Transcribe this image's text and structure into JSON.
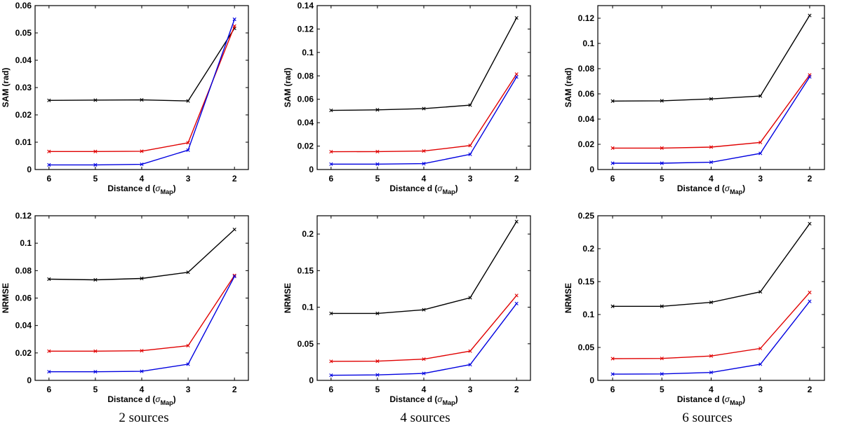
{
  "captions": [
    "2 sources",
    "4 sources",
    "6 sources"
  ],
  "colors": {
    "black": "#000000",
    "red": "#e00000",
    "blue": "#0000e0"
  },
  "chart_data": [
    {
      "type": "line",
      "xlabel": "Distance d",
      "xlabel_sym": "σ",
      "xlabel_sub": "Map",
      "ylabel": "SAM (rad)",
      "x": [
        6,
        5,
        4,
        3,
        2
      ],
      "xlim": [
        6.3,
        1.7
      ],
      "ylim": [
        0,
        0.06
      ],
      "yticks": [
        0,
        0.01,
        0.02,
        0.03,
        0.04,
        0.05,
        0.06
      ],
      "ytick_labels": [
        "0",
        "0.01",
        "0.02",
        "0.03",
        "0.04",
        "0.05",
        "0.06"
      ],
      "series": [
        {
          "color": "#000000",
          "values": [
            0.0253,
            0.0254,
            0.0255,
            0.0251,
            0.0517
          ]
        },
        {
          "color": "#e00000",
          "values": [
            0.0066,
            0.0066,
            0.0067,
            0.0098,
            0.0525
          ]
        },
        {
          "color": "#0000e0",
          "values": [
            0.0017,
            0.0017,
            0.0019,
            0.0071,
            0.055
          ]
        }
      ]
    },
    {
      "type": "line",
      "xlabel": "Distance d",
      "xlabel_sym": "σ",
      "xlabel_sub": "Map",
      "ylabel": "SAM (rad)",
      "x": [
        6,
        5,
        4,
        3,
        2
      ],
      "xlim": [
        6.3,
        1.7
      ],
      "ylim": [
        0,
        0.14
      ],
      "yticks": [
        0,
        0.02,
        0.04,
        0.06,
        0.08,
        0.1,
        0.12,
        0.14
      ],
      "ytick_labels": [
        "0",
        "0.02",
        "0.04",
        "0.06",
        "0.08",
        "0.1",
        "0.12",
        "0.14"
      ],
      "series": [
        {
          "color": "#000000",
          "values": [
            0.0505,
            0.051,
            0.052,
            0.055,
            0.1295
          ]
        },
        {
          "color": "#e00000",
          "values": [
            0.0152,
            0.0153,
            0.0158,
            0.0205,
            0.0815
          ]
        },
        {
          "color": "#0000e0",
          "values": [
            0.0046,
            0.0046,
            0.005,
            0.013,
            0.079
          ]
        }
      ]
    },
    {
      "type": "line",
      "xlabel": "Distance d",
      "xlabel_sym": "σ",
      "xlabel_sub": "Map",
      "ylabel": "SAM (rad)",
      "x": [
        6,
        5,
        4,
        3,
        2
      ],
      "xlim": [
        6.3,
        1.7
      ],
      "ylim": [
        0,
        0.13
      ],
      "yticks": [
        0,
        0.02,
        0.04,
        0.06,
        0.08,
        0.1,
        0.12
      ],
      "ytick_labels": [
        "0",
        "0.02",
        "0.04",
        "0.06",
        "0.08",
        "0.1",
        "0.12"
      ],
      "series": [
        {
          "color": "#000000",
          "values": [
            0.0543,
            0.0545,
            0.056,
            0.0583,
            0.1222
          ]
        },
        {
          "color": "#e00000",
          "values": [
            0.017,
            0.017,
            0.0178,
            0.0215,
            0.075
          ]
        },
        {
          "color": "#0000e0",
          "values": [
            0.005,
            0.005,
            0.0058,
            0.0128,
            0.0735
          ]
        }
      ]
    },
    {
      "type": "line",
      "xlabel": "Distance d",
      "xlabel_sym": "σ",
      "xlabel_sub": "Map",
      "ylabel": "NRMSE",
      "x": [
        6,
        5,
        4,
        3,
        2
      ],
      "xlim": [
        6.3,
        1.7
      ],
      "ylim": [
        0,
        0.12
      ],
      "yticks": [
        0,
        0.02,
        0.04,
        0.06,
        0.08,
        0.1,
        0.12
      ],
      "ytick_labels": [
        "0",
        "0.02",
        "0.04",
        "0.06",
        "0.08",
        "0.1",
        "0.12"
      ],
      "series": [
        {
          "color": "#000000",
          "values": [
            0.0738,
            0.0733,
            0.0743,
            0.0788,
            0.11
          ]
        },
        {
          "color": "#e00000",
          "values": [
            0.0213,
            0.0213,
            0.0216,
            0.0253,
            0.0765
          ]
        },
        {
          "color": "#0000e0",
          "values": [
            0.0063,
            0.0063,
            0.0066,
            0.0118,
            0.0758
          ]
        }
      ]
    },
    {
      "type": "line",
      "xlabel": "Distance d",
      "xlabel_sym": "σ",
      "xlabel_sub": "Map",
      "ylabel": "NRMSE",
      "x": [
        6,
        5,
        4,
        3,
        2
      ],
      "xlim": [
        6.3,
        1.7
      ],
      "ylim": [
        0,
        0.225
      ],
      "yticks": [
        0,
        0.05,
        0.1,
        0.15,
        0.2
      ],
      "ytick_labels": [
        "0",
        "0.05",
        "0.1",
        "0.15",
        "0.2"
      ],
      "series": [
        {
          "color": "#000000",
          "values": [
            0.0915,
            0.0915,
            0.0965,
            0.113,
            0.217
          ]
        },
        {
          "color": "#e00000",
          "values": [
            0.026,
            0.0262,
            0.029,
            0.04,
            0.116
          ]
        },
        {
          "color": "#0000e0",
          "values": [
            0.007,
            0.0075,
            0.0095,
            0.0215,
            0.105
          ]
        }
      ]
    },
    {
      "type": "line",
      "xlabel": "Distance d",
      "xlabel_sym": "σ",
      "xlabel_sub": "Map",
      "ylabel": "NRMSE",
      "x": [
        6,
        5,
        4,
        3,
        2
      ],
      "xlim": [
        6.3,
        1.7
      ],
      "ylim": [
        0,
        0.25
      ],
      "yticks": [
        0,
        0.05,
        0.1,
        0.15,
        0.2,
        0.25
      ],
      "ytick_labels": [
        "0",
        "0.05",
        "0.1",
        "0.15",
        "0.2",
        "0.25"
      ],
      "series": [
        {
          "color": "#000000",
          "values": [
            0.1125,
            0.1125,
            0.1185,
            0.1345,
            0.238
          ]
        },
        {
          "color": "#e00000",
          "values": [
            0.033,
            0.0333,
            0.037,
            0.0485,
            0.1335
          ]
        },
        {
          "color": "#0000e0",
          "values": [
            0.0095,
            0.0098,
            0.012,
            0.0245,
            0.12
          ]
        }
      ]
    }
  ]
}
